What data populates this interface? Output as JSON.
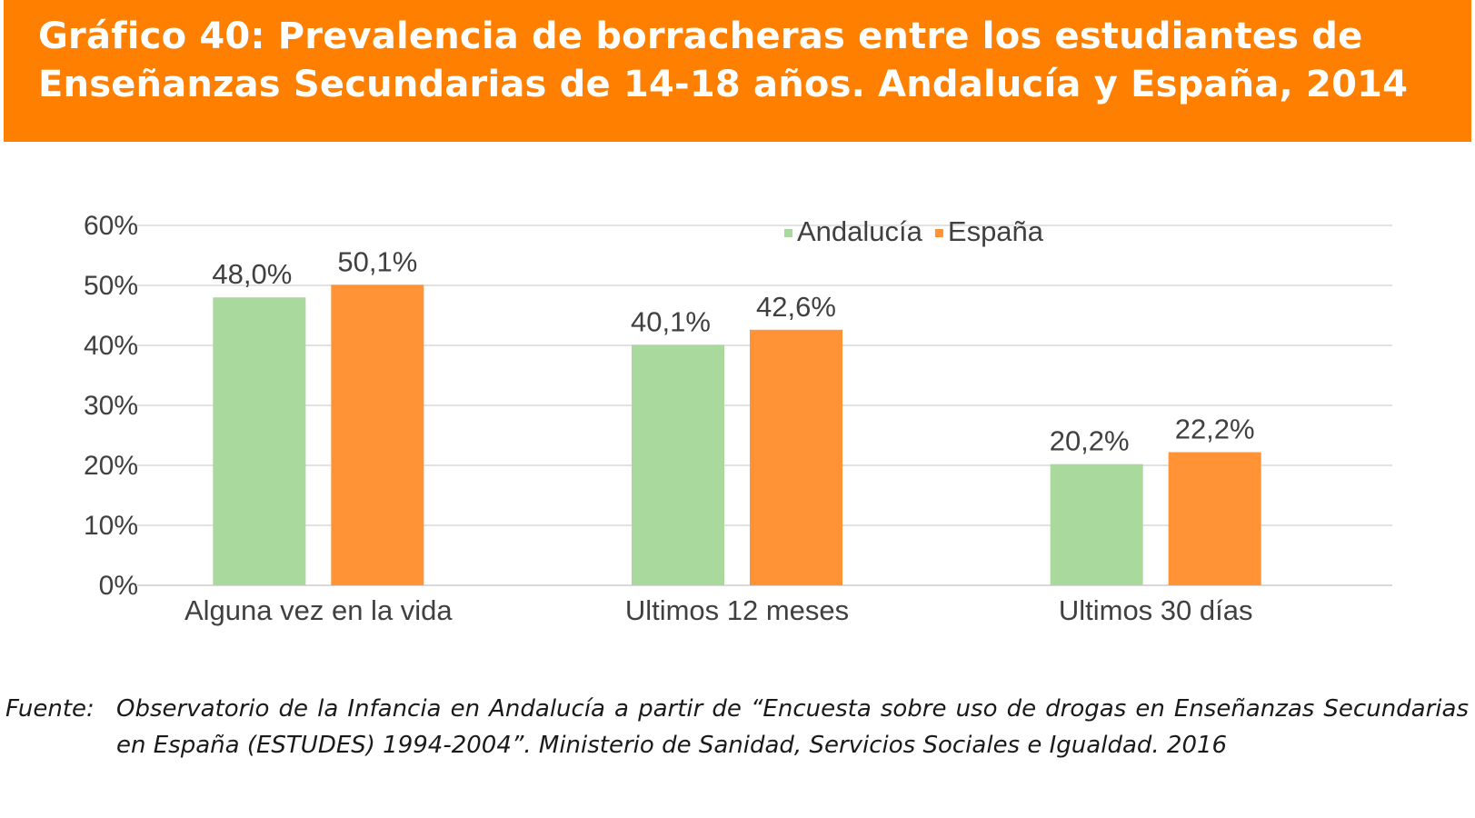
{
  "header": {
    "title": "Gráfico 40: Prevalencia de borracheras entre los estudiantes de Enseñanzas Secundarias de 14-18 años. Andalucía y España, 2014",
    "background_color": "#ff7f00"
  },
  "chart_data": {
    "type": "bar",
    "title": "Gráfico 40: Prevalencia de borracheras entre los estudiantes de Enseñanzas Secundarias de 14-18 años. Andalucía y España, 2014",
    "xlabel": "",
    "ylabel": "",
    "categories": [
      "Alguna vez en la vida",
      "Ultimos 12 meses",
      "Ultimos 30 días"
    ],
    "series": [
      {
        "name": "Andalucía",
        "values": [
          48.0,
          40.1,
          20.2
        ],
        "labels": [
          "48,0%",
          "40,1%",
          "20,2%"
        ],
        "color": "#a9d99c"
      },
      {
        "name": "España",
        "values": [
          50.1,
          42.6,
          22.2
        ],
        "labels": [
          "50,1%",
          "42,6%",
          "22,2%"
        ],
        "color": "#ff9336"
      }
    ],
    "ylim": [
      0,
      60
    ],
    "yticks": [
      "0%",
      "10%",
      "20%",
      "30%",
      "40%",
      "50%",
      "60%"
    ],
    "grid": true,
    "legend_position": "top-right"
  },
  "source": {
    "label": "Fuente:",
    "text": "Observatorio de la Infancia en Andalucía a partir de “Encuesta sobre uso de drogas en Enseñanzas Secundarias en España (ESTUDES) 1994-2004”. Ministerio de Sanidad, Servicios Sociales e Igualdad. 2016"
  }
}
